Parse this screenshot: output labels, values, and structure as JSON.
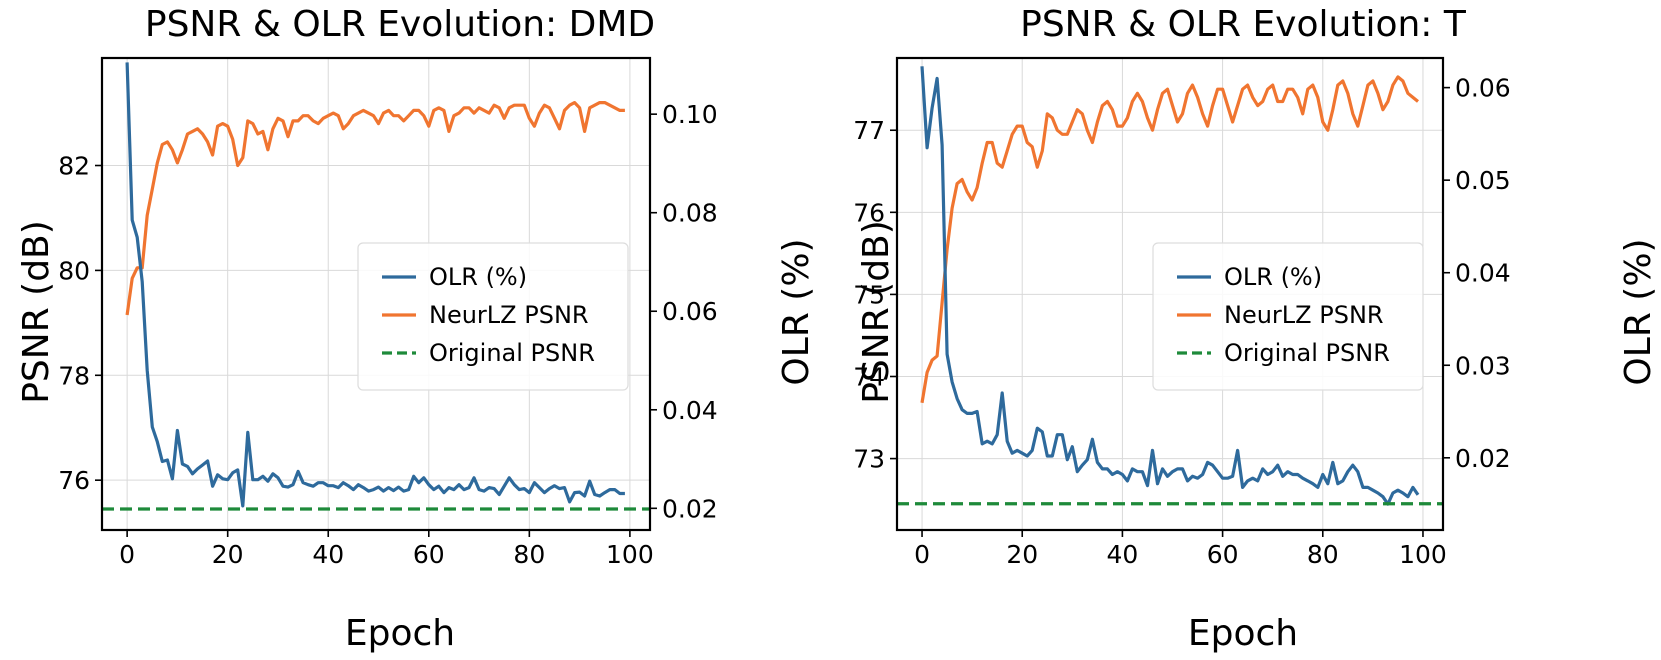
{
  "colors": {
    "olr": "#2e6a9c",
    "psnr": "#f07530",
    "original": "#1e8a3a"
  },
  "chart_data": [
    {
      "type": "line",
      "title": "PSNR & OLR Evolution: DMD",
      "xlabel": "Epoch",
      "ylabel": "PSNR (dB)",
      "y2label": "OLR (%)",
      "xlim": [
        -5,
        104
      ],
      "ylim": [
        75.05,
        84.05
      ],
      "y2lim": [
        0.0156,
        0.1114
      ],
      "xticks": [
        0,
        20,
        40,
        60,
        80,
        100
      ],
      "xtick_labels": [
        "0",
        "20",
        "40",
        "60",
        "80",
        "100"
      ],
      "yticks": [
        76,
        78,
        80,
        82
      ],
      "ytick_labels": [
        "76",
        "78",
        "80",
        "82"
      ],
      "y2ticks": [
        0.02,
        0.04,
        0.06,
        0.08,
        0.1
      ],
      "y2tick_labels": [
        "0.02",
        "0.04",
        "0.06",
        "0.08",
        "0.10"
      ],
      "legend": {
        "position": "center-right",
        "entries": [
          {
            "label": "OLR (%)",
            "style": "solid",
            "series": "olr"
          },
          {
            "label": "NeurLZ PSNR",
            "style": "solid",
            "series": "psnr"
          },
          {
            "label": "Original PSNR",
            "style": "dashed",
            "series": "original"
          }
        ]
      },
      "series": [
        {
          "name": "NeurLZ PSNR",
          "key": "psnr",
          "axis": "left",
          "x_start": 0,
          "values": [
            79.15,
            79.85,
            80.05,
            80.05,
            81.05,
            81.55,
            82.05,
            82.4,
            82.45,
            82.3,
            82.05,
            82.3,
            82.6,
            82.65,
            82.7,
            82.6,
            82.45,
            82.2,
            82.75,
            82.8,
            82.75,
            82.5,
            82.0,
            82.15,
            82.85,
            82.8,
            82.6,
            82.65,
            82.3,
            82.7,
            82.9,
            82.85,
            82.55,
            82.85,
            82.85,
            82.95,
            82.95,
            82.85,
            82.8,
            82.9,
            82.95,
            83.0,
            82.95,
            82.7,
            82.8,
            82.95,
            83.0,
            83.05,
            83.0,
            82.95,
            82.8,
            83.0,
            83.05,
            82.95,
            82.95,
            82.85,
            82.95,
            83.05,
            83.05,
            82.95,
            82.75,
            83.05,
            83.1,
            83.05,
            82.65,
            82.95,
            83.0,
            83.1,
            83.1,
            83.0,
            83.1,
            83.05,
            83.0,
            83.15,
            83.1,
            82.9,
            83.1,
            83.15,
            83.15,
            83.15,
            82.9,
            82.75,
            83.0,
            83.15,
            83.1,
            82.9,
            82.7,
            83.05,
            83.15,
            83.2,
            83.1,
            82.65,
            83.1,
            83.15,
            83.2,
            83.2,
            83.15,
            83.1,
            83.05,
            83.05
          ]
        },
        {
          "name": "OLR (%)",
          "key": "olr",
          "axis": "right",
          "x_start": 0,
          "values": [
            0.1105,
            0.0785,
            0.075,
            0.066,
            0.048,
            0.0365,
            0.0335,
            0.0295,
            0.0298,
            0.026,
            0.0358,
            0.029,
            0.0285,
            0.027,
            0.028,
            0.0288,
            0.0296,
            0.0245,
            0.0268,
            0.026,
            0.0258,
            0.0272,
            0.0278,
            0.0205,
            0.0354,
            0.0258,
            0.0258,
            0.0265,
            0.0255,
            0.027,
            0.0262,
            0.0245,
            0.0243,
            0.0248,
            0.0275,
            0.0252,
            0.0248,
            0.0245,
            0.0252,
            0.0252,
            0.0246,
            0.0246,
            0.0242,
            0.0252,
            0.0246,
            0.0238,
            0.0248,
            0.0242,
            0.0235,
            0.0238,
            0.0243,
            0.0235,
            0.0242,
            0.0236,
            0.0243,
            0.0235,
            0.0238,
            0.0265,
            0.0252,
            0.0262,
            0.0248,
            0.0238,
            0.0245,
            0.0232,
            0.0242,
            0.0238,
            0.0248,
            0.0238,
            0.0242,
            0.0262,
            0.0238,
            0.0235,
            0.0242,
            0.024,
            0.0228,
            0.0245,
            0.0262,
            0.0248,
            0.0238,
            0.024,
            0.0232,
            0.0252,
            0.0242,
            0.0232,
            0.024,
            0.0246,
            0.024,
            0.0242,
            0.0213,
            0.0232,
            0.0233,
            0.0225,
            0.0255,
            0.0228,
            0.0225,
            0.0232,
            0.0238,
            0.0238,
            0.023,
            0.023
          ]
        },
        {
          "name": "Original PSNR",
          "key": "original",
          "axis": "left",
          "constant": 75.45
        }
      ]
    },
    {
      "type": "line",
      "title": "PSNR & OLR Evolution: T",
      "xlabel": "Epoch",
      "ylabel": "PSNR (dB)",
      "y2label": "OLR (%)",
      "xlim": [
        -5,
        104
      ],
      "ylim": [
        72.13,
        77.88
      ],
      "y2lim": [
        0.0122,
        0.0632
      ],
      "xticks": [
        0,
        20,
        40,
        60,
        80,
        100
      ],
      "xtick_labels": [
        "0",
        "20",
        "40",
        "60",
        "80",
        "100"
      ],
      "yticks": [
        73,
        74,
        75,
        76,
        77
      ],
      "ytick_labels": [
        "73",
        "74",
        "75",
        "76",
        "77"
      ],
      "y2ticks": [
        0.02,
        0.03,
        0.04,
        0.05,
        0.06
      ],
      "y2tick_labels": [
        "0.02",
        "0.03",
        "0.04",
        "0.05",
        "0.06"
      ],
      "legend": {
        "position": "center-right",
        "entries": [
          {
            "label": "OLR (%)",
            "style": "solid",
            "series": "olr"
          },
          {
            "label": "NeurLZ PSNR",
            "style": "solid",
            "series": "psnr"
          },
          {
            "label": "Original PSNR",
            "style": "dashed",
            "series": "original"
          }
        ]
      },
      "series": [
        {
          "name": "NeurLZ PSNR",
          "key": "psnr",
          "axis": "left",
          "x_start": 0,
          "values": [
            73.68,
            74.05,
            74.2,
            74.25,
            74.9,
            75.55,
            76.05,
            76.35,
            76.4,
            76.25,
            76.15,
            76.3,
            76.6,
            76.85,
            76.85,
            76.6,
            76.55,
            76.75,
            76.95,
            77.05,
            77.05,
            76.85,
            76.8,
            76.55,
            76.75,
            77.2,
            77.15,
            77.0,
            76.95,
            76.95,
            77.1,
            77.25,
            77.2,
            77.0,
            76.85,
            77.1,
            77.3,
            77.35,
            77.25,
            77.05,
            77.05,
            77.15,
            77.35,
            77.45,
            77.35,
            77.15,
            77.0,
            77.25,
            77.45,
            77.5,
            77.3,
            77.1,
            77.2,
            77.45,
            77.55,
            77.4,
            77.2,
            77.05,
            77.3,
            77.5,
            77.5,
            77.3,
            77.1,
            77.3,
            77.5,
            77.55,
            77.4,
            77.3,
            77.35,
            77.5,
            77.55,
            77.35,
            77.35,
            77.5,
            77.5,
            77.4,
            77.2,
            77.5,
            77.55,
            77.4,
            77.1,
            77.0,
            77.25,
            77.55,
            77.6,
            77.45,
            77.2,
            77.05,
            77.3,
            77.55,
            77.6,
            77.45,
            77.25,
            77.35,
            77.55,
            77.65,
            77.6,
            77.45,
            77.4,
            77.35
          ]
        },
        {
          "name": "OLR (%)",
          "key": "olr",
          "axis": "right",
          "x_start": 0,
          "values": [
            0.0623,
            0.0535,
            0.0578,
            0.061,
            0.0538,
            0.0312,
            0.0282,
            0.0264,
            0.0252,
            0.0248,
            0.0248,
            0.025,
            0.0215,
            0.0218,
            0.0215,
            0.0225,
            0.027,
            0.0218,
            0.0205,
            0.0208,
            0.0205,
            0.0202,
            0.0208,
            0.0232,
            0.0228,
            0.0202,
            0.0202,
            0.0225,
            0.0225,
            0.0198,
            0.0212,
            0.0185,
            0.0192,
            0.0198,
            0.022,
            0.0195,
            0.0188,
            0.0188,
            0.0182,
            0.0185,
            0.0182,
            0.0175,
            0.0188,
            0.0185,
            0.0185,
            0.017,
            0.0208,
            0.0172,
            0.0188,
            0.018,
            0.0185,
            0.0188,
            0.0188,
            0.0175,
            0.018,
            0.0178,
            0.0182,
            0.0195,
            0.0192,
            0.0185,
            0.0178,
            0.0178,
            0.018,
            0.0208,
            0.0168,
            0.0175,
            0.0178,
            0.0175,
            0.0188,
            0.0182,
            0.0185,
            0.0192,
            0.018,
            0.0185,
            0.0182,
            0.0182,
            0.0178,
            0.0175,
            0.0172,
            0.0168,
            0.0182,
            0.0172,
            0.0195,
            0.0172,
            0.0175,
            0.0185,
            0.0192,
            0.0185,
            0.0168,
            0.0168,
            0.0165,
            0.0162,
            0.0158,
            0.015,
            0.0162,
            0.0165,
            0.0162,
            0.0158,
            0.0168,
            0.016
          ]
        },
        {
          "name": "Original PSNR",
          "key": "original",
          "axis": "left",
          "constant": 72.45
        }
      ]
    }
  ]
}
